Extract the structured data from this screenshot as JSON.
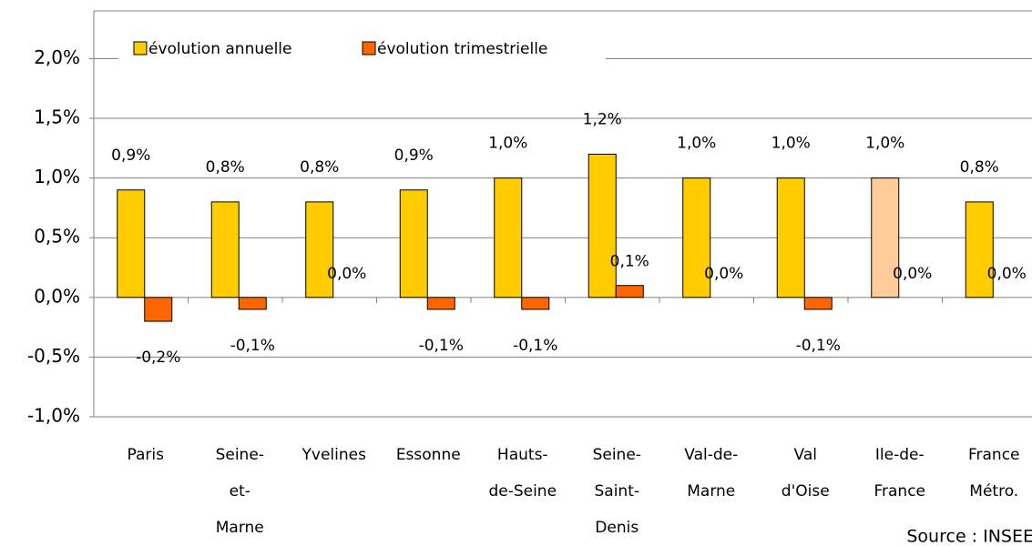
{
  "chart_data": {
    "type": "bar",
    "categories": [
      [
        "Paris"
      ],
      [
        "Seine-",
        "et-",
        "Marne"
      ],
      [
        "Yvelines"
      ],
      [
        "Essonne"
      ],
      [
        "Hauts-",
        "de-Seine"
      ],
      [
        "Seine-",
        "Saint-",
        "Denis"
      ],
      [
        "Val-de-",
        "Marne"
      ],
      [
        "Val",
        "d'Oise"
      ],
      [
        "Ile-de-",
        "France"
      ],
      [
        "France",
        "Métro."
      ]
    ],
    "series": [
      {
        "name": "évolution annuelle",
        "color": "#ffcc00",
        "colors": [
          "#ffcc00",
          "#ffcc00",
          "#ffcc00",
          "#ffcc00",
          "#ffcc00",
          "#ffcc00",
          "#ffcc00",
          "#ffcc00",
          "#ffcc99",
          "#ffcc00"
        ],
        "values": [
          0.9,
          0.8,
          0.8,
          0.9,
          1.0,
          1.2,
          1.0,
          1.0,
          1.0,
          0.8
        ],
        "value_labels": [
          "0,9%",
          "0,8%",
          "0,8%",
          "0,9%",
          "1,0%",
          "1,2%",
          "1,0%",
          "1,0%",
          "1,0%",
          "0,8%"
        ]
      },
      {
        "name": "évolution trimestrielle",
        "color": "#ff6600",
        "values": [
          -0.2,
          -0.1,
          0.0,
          -0.1,
          -0.1,
          0.1,
          0.0,
          -0.1,
          0.0,
          0.0
        ],
        "value_labels": [
          "-0,2%",
          "-0,1%",
          "0,0%",
          "-0,1%",
          "-0,1%",
          "0,1%",
          "0,0%",
          "-0,1%",
          "0,0%",
          "0,0%"
        ]
      }
    ],
    "ylim": [
      -1.0,
      2.4
    ],
    "yticks": [
      {
        "value": -1.0,
        "label": "-1,0%"
      },
      {
        "value": -0.5,
        "label": "-0,5%"
      },
      {
        "value": 0.0,
        "label": "0,0%"
      },
      {
        "value": 0.5,
        "label": "0,5%"
      },
      {
        "value": 1.0,
        "label": "1,0%"
      },
      {
        "value": 1.5,
        "label": "1,5%"
      },
      {
        "value": 2.0,
        "label": "2,0%"
      }
    ],
    "grid": true,
    "source": "Source : INSEE"
  }
}
